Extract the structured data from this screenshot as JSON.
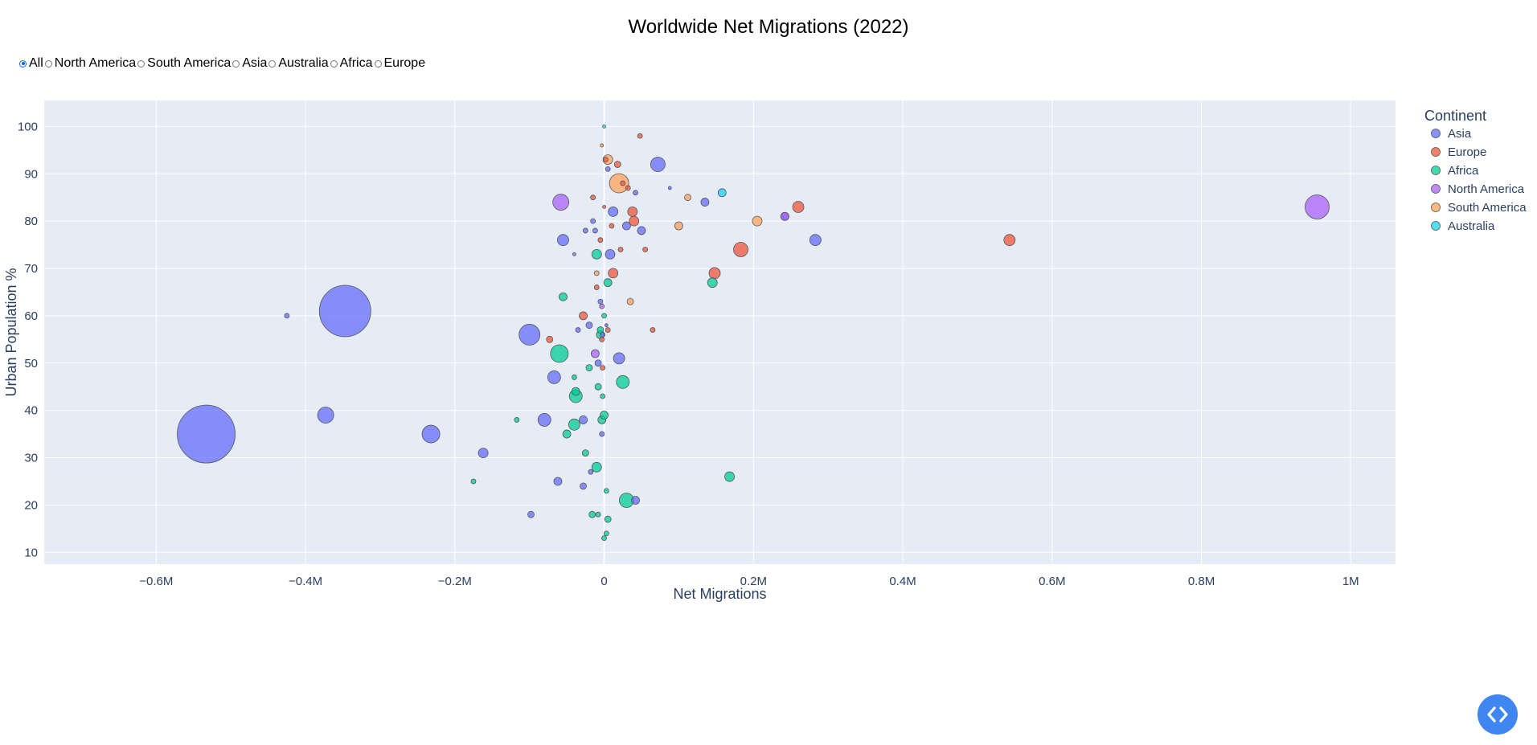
{
  "page_title": "Worldwide Net Migrations (2022)",
  "filters": {
    "selected": "All",
    "options": [
      "All",
      "North America",
      "South America",
      "Asia",
      "Australia",
      "Africa",
      "Europe"
    ]
  },
  "fab": {
    "icon": "code-icon"
  },
  "colors": {
    "Asia": "#636efa",
    "Europe": "#EF553B",
    "Africa": "#00cc96",
    "North America": "#ab63fa",
    "South America": "#FFA15A",
    "Australia": "#19d3f3",
    "plot_bg": "#e5ecf6"
  },
  "chart_data": {
    "type": "scatter",
    "title": "Worldwide Net Migrations (2022)",
    "xlabel": "Net Migrations",
    "ylabel": "Urban Population %",
    "xlim": [
      -750000,
      1060000
    ],
    "ylim": [
      7.5,
      105.5
    ],
    "x_ticks": [
      -600000,
      -400000,
      -200000,
      0,
      200000,
      400000,
      600000,
      800000,
      1000000
    ],
    "x_tick_labels": [
      "−0.6M",
      "−0.4M",
      "−0.2M",
      "0",
      "0.2M",
      "0.4M",
      "0.6M",
      "0.8M",
      "1M"
    ],
    "y_ticks": [
      10,
      20,
      30,
      40,
      50,
      60,
      70,
      80,
      90,
      100
    ],
    "y_tick_labels": [
      "10",
      "20",
      "30",
      "40",
      "50",
      "60",
      "70",
      "80",
      "90",
      "100"
    ],
    "grid": true,
    "legend_title": "Continent",
    "legend_position": "right",
    "series": [
      {
        "name": "Asia",
        "points": [
          [
            -533000,
            35,
            36
          ],
          [
            -347000,
            61,
            32
          ],
          [
            -425000,
            60,
            3
          ],
          [
            -373000,
            39,
            10
          ],
          [
            -232000,
            35,
            11
          ],
          [
            -162000,
            31,
            6
          ],
          [
            -100000,
            56,
            13
          ],
          [
            -80000,
            38,
            8
          ],
          [
            -98000,
            18,
            4
          ],
          [
            -62000,
            25,
            5
          ],
          [
            -55000,
            76,
            7
          ],
          [
            -67000,
            47,
            8
          ],
          [
            -28000,
            38,
            5
          ],
          [
            -28000,
            24,
            4
          ],
          [
            -40000,
            73,
            2
          ],
          [
            -25000,
            78,
            3
          ],
          [
            -20000,
            58,
            4
          ],
          [
            -15000,
            80,
            3
          ],
          [
            -12000,
            78,
            3
          ],
          [
            -8000,
            50,
            4
          ],
          [
            -5000,
            63,
            3
          ],
          [
            -3000,
            35,
            3
          ],
          [
            -2000,
            56,
            3
          ],
          [
            3000,
            58,
            2
          ],
          [
            8000,
            73,
            6
          ],
          [
            12000,
            82,
            6
          ],
          [
            20000,
            51,
            7
          ],
          [
            30000,
            79,
            5
          ],
          [
            50000,
            78,
            5
          ],
          [
            72000,
            92,
            9
          ],
          [
            135000,
            84,
            5
          ],
          [
            242000,
            81,
            5
          ],
          [
            283000,
            76,
            7
          ],
          [
            42000,
            21,
            5
          ],
          [
            -18000,
            27,
            3
          ],
          [
            -35000,
            57,
            3
          ],
          [
            5000,
            91,
            3
          ],
          [
            42000,
            86,
            3
          ],
          [
            88000,
            87,
            2
          ]
        ]
      },
      {
        "name": "Europe",
        "points": [
          [
            -28000,
            60,
            5
          ],
          [
            -73000,
            55,
            4
          ],
          [
            -15000,
            85,
            3
          ],
          [
            -10000,
            66,
            3
          ],
          [
            -5000,
            76,
            3
          ],
          [
            -3000,
            55,
            3
          ],
          [
            -2000,
            49,
            3
          ],
          [
            0,
            83,
            2
          ],
          [
            2000,
            93,
            3
          ],
          [
            5000,
            57,
            3
          ],
          [
            12000,
            69,
            6
          ],
          [
            18000,
            92,
            4
          ],
          [
            22000,
            74,
            3
          ],
          [
            38000,
            82,
            6
          ],
          [
            40000,
            80,
            6
          ],
          [
            48000,
            98,
            3
          ],
          [
            55000,
            74,
            3
          ],
          [
            65000,
            57,
            3
          ],
          [
            148000,
            69,
            7
          ],
          [
            183000,
            74,
            9
          ],
          [
            260000,
            83,
            7
          ],
          [
            543000,
            76,
            7
          ],
          [
            10000,
            79,
            3
          ],
          [
            25000,
            88,
            3
          ],
          [
            32000,
            87,
            3
          ]
        ]
      },
      {
        "name": "Africa",
        "points": [
          [
            -175000,
            25,
            3
          ],
          [
            -117000,
            38,
            3
          ],
          [
            -55000,
            64,
            5
          ],
          [
            -50000,
            35,
            5
          ],
          [
            -40000,
            37,
            7
          ],
          [
            -38000,
            44,
            5
          ],
          [
            -38000,
            43,
            8
          ],
          [
            -40000,
            47,
            3
          ],
          [
            -60000,
            52,
            11
          ],
          [
            -25000,
            31,
            4
          ],
          [
            -20000,
            49,
            4
          ],
          [
            -16000,
            18,
            4
          ],
          [
            -10000,
            73,
            6
          ],
          [
            -10000,
            28,
            6
          ],
          [
            -8000,
            45,
            4
          ],
          [
            -5000,
            57,
            4
          ],
          [
            -3000,
            38,
            5
          ],
          [
            -2000,
            43,
            3
          ],
          [
            0,
            39,
            5
          ],
          [
            5000,
            67,
            5
          ],
          [
            5000,
            17,
            4
          ],
          [
            3000,
            14,
            3
          ],
          [
            0,
            13,
            3
          ],
          [
            3000,
            23,
            3
          ],
          [
            -8000,
            18,
            3
          ],
          [
            25000,
            46,
            8
          ],
          [
            30000,
            21,
            9
          ],
          [
            145000,
            67,
            6
          ],
          [
            168000,
            26,
            6
          ],
          [
            -5000,
            56,
            5
          ],
          [
            0,
            60,
            3
          ]
        ]
      },
      {
        "name": "North America",
        "points": [
          [
            955000,
            83,
            15
          ],
          [
            -58000,
            84,
            10
          ],
          [
            -12000,
            52,
            5
          ],
          [
            242000,
            81,
            5
          ],
          [
            -3000,
            62,
            3
          ]
        ]
      },
      {
        "name": "South America",
        "points": [
          [
            20000,
            88,
            12
          ],
          [
            5000,
            93,
            6
          ],
          [
            35000,
            63,
            4
          ],
          [
            100000,
            79,
            5
          ],
          [
            112000,
            85,
            4
          ],
          [
            205000,
            80,
            6
          ],
          [
            -10000,
            69,
            3
          ],
          [
            -3000,
            96,
            2
          ]
        ]
      },
      {
        "name": "Australia",
        "points": [
          [
            158000,
            86,
            5
          ],
          [
            0,
            100,
            2
          ]
        ]
      }
    ]
  }
}
